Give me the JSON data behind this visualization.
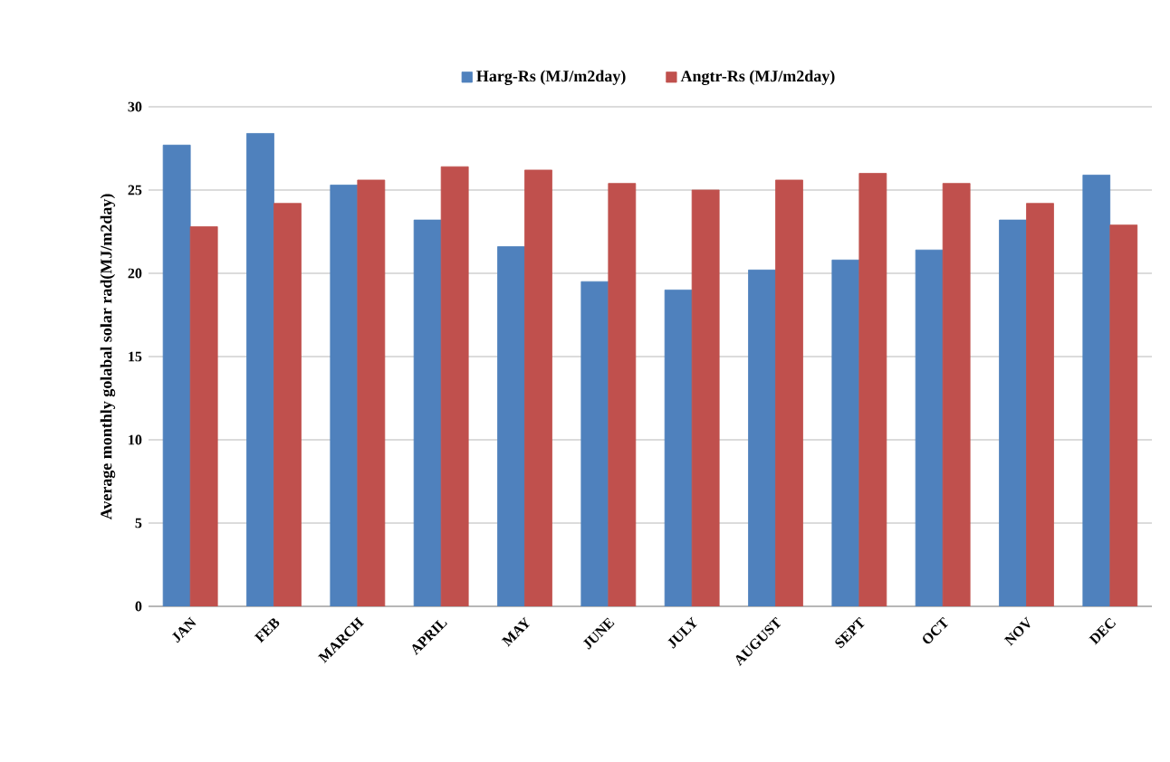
{
  "chart_data": {
    "type": "bar",
    "ylabel": "Average monthly golabal solar rad(MJ/m2day)",
    "categories": [
      "JAN",
      "FEB",
      "MARCH",
      "APRIL",
      "MAY",
      "JUNE",
      "JULY",
      "AUGUST",
      "SEPT",
      "OCT",
      "NOV",
      "DEC"
    ],
    "series": [
      {
        "name": "Harg-Rs  (MJ/m2day)",
        "color": "#4f81bd",
        "values": [
          27.7,
          28.4,
          25.3,
          23.2,
          21.6,
          19.5,
          19.0,
          20.2,
          20.8,
          21.4,
          23.2,
          25.9
        ]
      },
      {
        "name": "Angtr-Rs  (MJ/m2day)",
        "color": "#c0504d",
        "values": [
          22.8,
          24.2,
          25.6,
          26.4,
          26.2,
          25.4,
          25.0,
          25.6,
          26.0,
          25.4,
          24.2,
          22.9
        ]
      }
    ],
    "ylim": [
      0,
      30
    ],
    "yticks": [
      0,
      5,
      10,
      15,
      20,
      25,
      30
    ],
    "grid": "y",
    "legend": "top"
  }
}
